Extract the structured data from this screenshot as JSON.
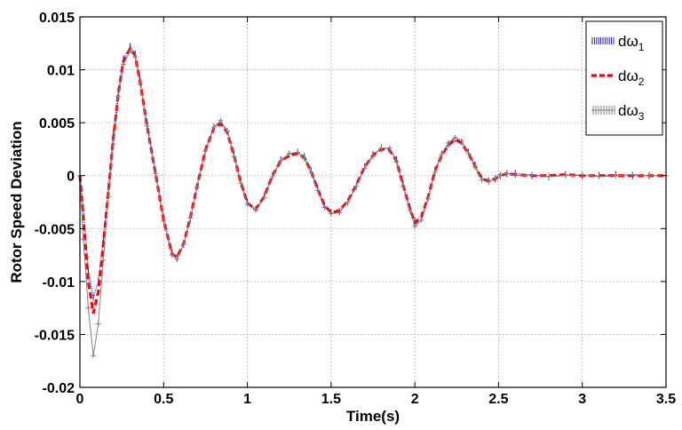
{
  "chart_data": {
    "type": "line",
    "title": "",
    "xlabel": "Time(s)",
    "ylabel": "Rotor Speed Deviation",
    "xlim": [
      0,
      3.5
    ],
    "ylim": [
      -0.02,
      0.015
    ],
    "xticks": [
      0,
      0.5,
      1,
      1.5,
      2,
      2.5,
      3,
      3.5
    ],
    "xtick_labels": [
      "0",
      "0.5",
      "1",
      "1.5",
      "2",
      "2.5",
      "3",
      "3.5"
    ],
    "yticks": [
      -0.02,
      -0.015,
      -0.01,
      -0.005,
      0,
      0.005,
      0.01,
      0.015
    ],
    "ytick_labels": [
      "-0.02",
      "-0.015",
      "-0.01",
      "-0.005",
      "0",
      "0.005",
      "0.01",
      "0.015"
    ],
    "grid": true,
    "legend_position": "top-right",
    "series": [
      {
        "name": "dω1",
        "legend_base": "dω",
        "legend_sub": "1",
        "color": "#1a1acc",
        "style": "dotted-markers",
        "x": [
          0.0,
          0.02,
          0.05,
          0.08,
          0.11,
          0.14,
          0.17,
          0.2,
          0.23,
          0.26,
          0.3,
          0.33,
          0.36,
          0.4,
          0.45,
          0.5,
          0.55,
          0.58,
          0.62,
          0.66,
          0.7,
          0.75,
          0.8,
          0.84,
          0.88,
          0.92,
          0.96,
          1.0,
          1.05,
          1.1,
          1.15,
          1.2,
          1.25,
          1.3,
          1.34,
          1.38,
          1.42,
          1.46,
          1.5,
          1.55,
          1.6,
          1.65,
          1.7,
          1.75,
          1.8,
          1.85,
          1.89,
          1.93,
          1.97,
          2.0,
          2.04,
          2.08,
          2.12,
          2.16,
          2.2,
          2.24,
          2.28,
          2.32,
          2.36,
          2.4,
          2.44,
          2.48,
          2.51,
          2.55,
          2.6,
          2.7,
          2.8,
          2.9,
          3.0,
          3.1,
          3.2,
          3.3,
          3.4,
          3.5
        ],
        "y": [
          0.0,
          -0.003,
          -0.009,
          -0.0115,
          -0.01,
          -0.006,
          -0.001,
          0.004,
          0.008,
          0.011,
          0.0122,
          0.0115,
          0.009,
          0.005,
          0.0005,
          -0.004,
          -0.0073,
          -0.0078,
          -0.0065,
          -0.004,
          -0.001,
          0.0025,
          0.0046,
          0.005,
          0.0042,
          0.002,
          -0.0005,
          -0.0025,
          -0.0032,
          -0.002,
          0.0,
          0.0015,
          0.002,
          0.0022,
          0.0018,
          0.0005,
          -0.0012,
          -0.0028,
          -0.0035,
          -0.0034,
          -0.0025,
          -0.001,
          0.0008,
          0.002,
          0.0026,
          0.0025,
          0.0015,
          -0.0008,
          -0.003,
          -0.0043,
          -0.0038,
          -0.002,
          0.0005,
          0.002,
          0.003,
          0.0035,
          0.0032,
          0.0022,
          0.001,
          -0.0003,
          -0.0005,
          -0.0003,
          0.0,
          0.0002,
          0.0002,
          0.0,
          -0.0001,
          0.0001,
          0.0,
          0.0,
          0.0001,
          0.0,
          0.0,
          0.0
        ]
      },
      {
        "name": "dω2",
        "legend_base": "dω",
        "legend_sub": "2",
        "color": "#ff0000",
        "style": "dashed",
        "x": [
          0.0,
          0.02,
          0.05,
          0.08,
          0.11,
          0.14,
          0.17,
          0.2,
          0.23,
          0.26,
          0.3,
          0.33,
          0.36,
          0.4,
          0.45,
          0.5,
          0.55,
          0.58,
          0.62,
          0.66,
          0.7,
          0.75,
          0.8,
          0.84,
          0.88,
          0.92,
          0.96,
          1.0,
          1.05,
          1.1,
          1.15,
          1.2,
          1.25,
          1.3,
          1.34,
          1.38,
          1.42,
          1.46,
          1.5,
          1.55,
          1.6,
          1.65,
          1.7,
          1.75,
          1.8,
          1.85,
          1.89,
          1.93,
          1.97,
          2.0,
          2.04,
          2.08,
          2.12,
          2.16,
          2.2,
          2.24,
          2.28,
          2.32,
          2.36,
          2.4,
          2.44,
          2.48,
          2.51,
          2.55,
          2.6,
          2.7,
          2.8,
          2.9,
          3.0,
          3.1,
          3.2,
          3.3,
          3.4,
          3.5
        ],
        "y": [
          0.0,
          -0.004,
          -0.01,
          -0.013,
          -0.011,
          -0.0065,
          -0.0015,
          0.0035,
          0.0078,
          0.0108,
          0.012,
          0.0113,
          0.0088,
          0.0048,
          0.0003,
          -0.0042,
          -0.0074,
          -0.0077,
          -0.0064,
          -0.0039,
          -0.001,
          0.0024,
          0.0045,
          0.0049,
          0.0041,
          0.0019,
          -0.0006,
          -0.0026,
          -0.0032,
          -0.002,
          0.0,
          0.0014,
          0.0019,
          0.0021,
          0.0017,
          0.0004,
          -0.0013,
          -0.0028,
          -0.0035,
          -0.0033,
          -0.0024,
          -0.0009,
          0.0008,
          0.0019,
          0.0025,
          0.0024,
          0.0014,
          -0.0009,
          -0.0031,
          -0.0045,
          -0.0039,
          -0.002,
          0.0004,
          0.0019,
          0.0029,
          0.0034,
          0.0031,
          0.0021,
          0.0009,
          -0.0003,
          -0.0005,
          -0.0003,
          0.0,
          0.0002,
          0.0001,
          0.0,
          0.0,
          0.0001,
          0.0,
          0.0,
          0.0,
          0.0,
          0.0,
          0.0
        ]
      },
      {
        "name": "dω3",
        "legend_base": "dω",
        "legend_sub": "3",
        "color": "#808080",
        "style": "plus-markers",
        "x": [
          0.0,
          0.02,
          0.05,
          0.08,
          0.11,
          0.14,
          0.17,
          0.2,
          0.23,
          0.26,
          0.3,
          0.33,
          0.36,
          0.4,
          0.45,
          0.5,
          0.55,
          0.58,
          0.62,
          0.66,
          0.7,
          0.75,
          0.8,
          0.84,
          0.88,
          0.92,
          0.96,
          1.0,
          1.05,
          1.1,
          1.15,
          1.2,
          1.25,
          1.3,
          1.34,
          1.38,
          1.42,
          1.46,
          1.5,
          1.55,
          1.6,
          1.65,
          1.7,
          1.75,
          1.8,
          1.85,
          1.89,
          1.93,
          1.97,
          2.0,
          2.04,
          2.08,
          2.12,
          2.16,
          2.2,
          2.24,
          2.28,
          2.32,
          2.36,
          2.4,
          2.44,
          2.48,
          2.51,
          2.55,
          2.6,
          2.7,
          2.8,
          2.9,
          3.0,
          3.1,
          3.2,
          3.3,
          3.4,
          3.5
        ],
        "y": [
          0.0,
          -0.006,
          -0.0125,
          -0.017,
          -0.014,
          -0.008,
          -0.002,
          0.003,
          0.0075,
          0.0105,
          0.0118,
          0.0112,
          0.0087,
          0.0047,
          0.0002,
          -0.0043,
          -0.0075,
          -0.0079,
          -0.0065,
          -0.004,
          -0.0011,
          0.0023,
          0.0046,
          0.0052,
          0.0042,
          0.0018,
          -0.0007,
          -0.0027,
          -0.0033,
          -0.0021,
          -0.0001,
          0.0014,
          0.0021,
          0.0022,
          0.0016,
          0.0003,
          -0.0014,
          -0.003,
          -0.0036,
          -0.0035,
          -0.0025,
          -0.001,
          0.0007,
          0.0018,
          0.0026,
          0.0026,
          0.0013,
          -0.001,
          -0.0033,
          -0.0048,
          -0.0042,
          -0.0022,
          0.0003,
          0.002,
          0.0031,
          0.0036,
          0.0033,
          0.0021,
          0.0008,
          -0.0004,
          -0.0006,
          -0.0002,
          0.0001,
          0.0002,
          0.0,
          0.0001,
          -0.0001,
          0.0,
          0.0001,
          -0.0001,
          0.0,
          0.0001,
          0.0,
          0.0
        ]
      }
    ]
  }
}
